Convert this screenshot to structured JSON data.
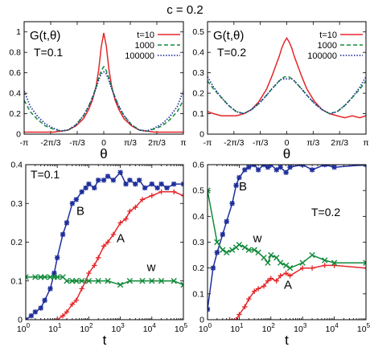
{
  "figure_title": "c = 0.2",
  "colors": {
    "red": "#e5262a",
    "green": "#128a3a",
    "blue": "#1f2f9c"
  },
  "chart_data": [
    {
      "type": "line",
      "panel": "top-left",
      "label": "G(t,θ)",
      "param": "T=0.1",
      "xlabel": "θ",
      "xlim": [
        -3.14159,
        3.14159
      ],
      "ylim": [
        0,
        1.1
      ],
      "xtick_values": [
        -3.14159,
        -2.0944,
        -1.0472,
        0,
        1.0472,
        2.0944,
        3.14159
      ],
      "xtick_labels": [
        "-π",
        "-2π/3",
        "-π/3",
        "0",
        "π/3",
        "2π/3",
        "π"
      ],
      "ytick_values": [
        0,
        0.2,
        0.4,
        0.6,
        0.8,
        1
      ],
      "ytick_labels": [
        "0",
        "0.2",
        "0.4",
        "0.6",
        "0.8",
        "1"
      ],
      "legend_position": "top-right",
      "x": [
        -3.14,
        -2.9,
        -2.6,
        -2.3,
        -2.0,
        -1.7,
        -1.4,
        -1.1,
        -0.8,
        -0.6,
        -0.45,
        -0.3,
        -0.2,
        -0.1,
        0,
        0.1,
        0.2,
        0.3,
        0.45,
        0.6,
        0.8,
        1.1,
        1.4,
        1.7,
        2.0,
        2.3,
        2.6,
        2.9,
        3.14
      ],
      "series": [
        {
          "name": "t=10",
          "color": "#e5262a",
          "dash": "solid",
          "values": [
            0.02,
            0.02,
            0.02,
            0.02,
            0.02,
            0.03,
            0.04,
            0.08,
            0.15,
            0.24,
            0.33,
            0.47,
            0.63,
            0.85,
            0.99,
            0.86,
            0.64,
            0.48,
            0.33,
            0.24,
            0.15,
            0.08,
            0.04,
            0.03,
            0.02,
            0.02,
            0.02,
            0.02,
            0.02
          ]
        },
        {
          "name": "1000",
          "color": "#128a3a",
          "dash": "dashed",
          "values": [
            0.33,
            0.22,
            0.14,
            0.08,
            0.05,
            0.03,
            0.04,
            0.09,
            0.18,
            0.27,
            0.36,
            0.46,
            0.55,
            0.62,
            0.66,
            0.62,
            0.55,
            0.46,
            0.36,
            0.27,
            0.18,
            0.09,
            0.04,
            0.03,
            0.05,
            0.08,
            0.14,
            0.22,
            0.33
          ]
        },
        {
          "name": "100000",
          "color": "#1f2f9c",
          "dash": "dotted",
          "values": [
            0.42,
            0.27,
            0.17,
            0.1,
            0.06,
            0.03,
            0.04,
            0.09,
            0.18,
            0.27,
            0.35,
            0.45,
            0.53,
            0.59,
            0.61,
            0.59,
            0.53,
            0.45,
            0.35,
            0.27,
            0.18,
            0.09,
            0.04,
            0.03,
            0.06,
            0.1,
            0.17,
            0.27,
            0.42
          ]
        }
      ]
    },
    {
      "type": "line",
      "panel": "top-right",
      "label": "G(t,θ)",
      "param": "T=0.2",
      "xlabel": "θ",
      "xlim": [
        -3.14159,
        3.14159
      ],
      "ylim": [
        0,
        0.55
      ],
      "xtick_values": [
        -3.14159,
        -2.0944,
        -1.0472,
        0,
        1.0472,
        2.0944,
        3.14159
      ],
      "xtick_labels": [
        "-π",
        "-2π/3",
        "-π/3",
        "0",
        "π/3",
        "2π/3",
        "π"
      ],
      "ytick_values": [
        0,
        0.1,
        0.2,
        0.3,
        0.4,
        0.5
      ],
      "ytick_labels": [
        "0",
        "0.1",
        "0.2",
        "0.3",
        "0.4",
        "0.5"
      ],
      "legend_position": "top-right",
      "x": [
        -3.14,
        -2.9,
        -2.6,
        -2.3,
        -2.0,
        -1.7,
        -1.4,
        -1.1,
        -0.8,
        -0.6,
        -0.45,
        -0.3,
        -0.2,
        -0.1,
        0,
        0.1,
        0.2,
        0.3,
        0.45,
        0.6,
        0.8,
        1.1,
        1.4,
        1.7,
        2.0,
        2.3,
        2.6,
        2.9,
        3.14
      ],
      "series": [
        {
          "name": "t=10",
          "color": "#e5262a",
          "dash": "solid",
          "values": [
            0.11,
            0.1,
            0.09,
            0.09,
            0.09,
            0.1,
            0.12,
            0.16,
            0.22,
            0.28,
            0.33,
            0.38,
            0.42,
            0.45,
            0.47,
            0.45,
            0.42,
            0.38,
            0.33,
            0.28,
            0.22,
            0.16,
            0.12,
            0.1,
            0.09,
            0.08,
            0.09,
            0.08,
            0.09
          ]
        },
        {
          "name": "1000",
          "color": "#128a3a",
          "dash": "dashed",
          "values": [
            0.26,
            0.22,
            0.18,
            0.14,
            0.11,
            0.1,
            0.12,
            0.15,
            0.19,
            0.22,
            0.24,
            0.26,
            0.27,
            0.28,
            0.28,
            0.28,
            0.27,
            0.26,
            0.24,
            0.22,
            0.19,
            0.15,
            0.12,
            0.1,
            0.11,
            0.14,
            0.18,
            0.22,
            0.26
          ]
        },
        {
          "name": "100000",
          "color": "#1f2f9c",
          "dash": "dotted",
          "values": [
            0.28,
            0.23,
            0.18,
            0.14,
            0.11,
            0.1,
            0.12,
            0.15,
            0.19,
            0.22,
            0.24,
            0.26,
            0.27,
            0.27,
            0.27,
            0.27,
            0.27,
            0.26,
            0.24,
            0.22,
            0.19,
            0.15,
            0.12,
            0.1,
            0.11,
            0.14,
            0.18,
            0.23,
            0.28
          ]
        }
      ]
    },
    {
      "type": "line",
      "panel": "bottom-left",
      "param": "T=0.1",
      "xlabel": "t",
      "xscale": "log",
      "xlim": [
        1,
        100000
      ],
      "ylim": [
        0,
        0.4
      ],
      "xtick_values": [
        1,
        10,
        100,
        1000,
        10000,
        100000
      ],
      "xtick_labels": [
        "10^0",
        "10^1",
        "10^2",
        "10^3",
        "10^4",
        "10^5"
      ],
      "ytick_values": [
        0,
        0.1,
        0.2,
        0.3,
        0.4
      ],
      "ytick_labels": [
        "0",
        "0.1",
        "0.2",
        "0.3",
        "0.4"
      ],
      "series": [
        {
          "name": "B",
          "color": "#1f2f9c",
          "marker": "star",
          "x": [
            1,
            1.5,
            2,
            3,
            4,
            6,
            8,
            10,
            15,
            20,
            30,
            40,
            60,
            80,
            100,
            150,
            200,
            300,
            400,
            600,
            1000,
            1500,
            2000,
            3000,
            4000,
            6000,
            10000,
            15000,
            20000,
            30000,
            50000,
            100000
          ],
          "y": [
            0.0,
            0.01,
            0.02,
            0.03,
            0.05,
            0.08,
            0.12,
            0.16,
            0.22,
            0.25,
            0.3,
            0.31,
            0.33,
            0.34,
            0.35,
            0.34,
            0.36,
            0.36,
            0.37,
            0.36,
            0.38,
            0.35,
            0.36,
            0.35,
            0.36,
            0.34,
            0.35,
            0.34,
            0.35,
            0.34,
            0.35,
            0.35
          ]
        },
        {
          "name": "A",
          "color": "#e5262a",
          "marker": "plus",
          "x": [
            10,
            15,
            20,
            30,
            40,
            60,
            80,
            100,
            150,
            200,
            300,
            400,
            600,
            1000,
            1500,
            2000,
            3000,
            5000,
            10000,
            20000,
            50000,
            100000
          ],
          "y": [
            0.0,
            0.01,
            0.02,
            0.04,
            0.05,
            0.08,
            0.1,
            0.12,
            0.14,
            0.16,
            0.19,
            0.2,
            0.22,
            0.25,
            0.26,
            0.28,
            0.29,
            0.31,
            0.32,
            0.33,
            0.33,
            0.32
          ]
        },
        {
          "name": "w",
          "color": "#128a3a",
          "marker": "x",
          "x": [
            1,
            2,
            3,
            4,
            6,
            8,
            10,
            15,
            20,
            30,
            40,
            60,
            100,
            200,
            400,
            1000,
            2000,
            5000,
            10000,
            20000,
            50000,
            100000
          ],
          "y": [
            0.11,
            0.11,
            0.11,
            0.11,
            0.11,
            0.11,
            0.11,
            0.11,
            0.1,
            0.1,
            0.1,
            0.1,
            0.1,
            0.1,
            0.1,
            0.09,
            0.1,
            0.1,
            0.1,
            0.1,
            0.1,
            0.09
          ]
        }
      ]
    },
    {
      "type": "line",
      "panel": "bottom-right",
      "param": "T=0.2",
      "xlabel": "t",
      "xscale": "log",
      "xlim": [
        1,
        100000
      ],
      "ylim": [
        0,
        0.6
      ],
      "xtick_values": [
        1,
        10,
        100,
        1000,
        10000,
        100000
      ],
      "xtick_labels": [
        "10^0",
        "10^1",
        "10^2",
        "10^3",
        "10^4",
        "10^5"
      ],
      "ytick_values": [
        0,
        0.1,
        0.2,
        0.3,
        0.4,
        0.5,
        0.6
      ],
      "ytick_labels": [
        "0",
        "0.1",
        "0.2",
        "0.3",
        "0.4",
        "0.5",
        "0.6"
      ],
      "series": [
        {
          "name": "B",
          "color": "#1f2f9c",
          "marker": "star",
          "x": [
            1,
            1.5,
            2,
            3,
            4,
            6,
            8,
            10,
            15,
            20,
            30,
            40,
            60,
            80,
            100,
            150,
            200,
            300,
            400,
            1000,
            2000,
            5000,
            10000,
            100000
          ],
          "y": [
            0.04,
            0.2,
            0.26,
            0.33,
            0.38,
            0.45,
            0.52,
            0.55,
            0.58,
            0.59,
            0.6,
            0.58,
            0.6,
            0.59,
            0.6,
            0.58,
            0.59,
            0.57,
            0.59,
            0.6,
            0.58,
            0.6,
            0.59,
            0.6
          ]
        },
        {
          "name": "A",
          "color": "#e5262a",
          "marker": "plus",
          "x": [
            5,
            8,
            10,
            15,
            20,
            30,
            40,
            60,
            80,
            100,
            150,
            200,
            300,
            400,
            1000,
            2000,
            5000,
            10000,
            100000
          ],
          "y": [
            0.0,
            0.0,
            0.02,
            0.05,
            0.08,
            0.11,
            0.12,
            0.13,
            0.15,
            0.16,
            0.15,
            0.17,
            0.18,
            0.17,
            0.2,
            0.2,
            0.21,
            0.21,
            0.2
          ]
        },
        {
          "name": "w",
          "color": "#128a3a",
          "marker": "x",
          "x": [
            1,
            2,
            3,
            4,
            6,
            8,
            10,
            15,
            20,
            30,
            40,
            60,
            80,
            100,
            150,
            200,
            300,
            400,
            1000,
            2000,
            5000,
            10000,
            100000
          ],
          "y": [
            0.5,
            0.3,
            0.27,
            0.26,
            0.27,
            0.28,
            0.29,
            0.28,
            0.27,
            0.27,
            0.26,
            0.24,
            0.22,
            0.25,
            0.24,
            0.22,
            0.21,
            0.2,
            0.22,
            0.25,
            0.23,
            0.22,
            0.22
          ]
        }
      ]
    }
  ]
}
